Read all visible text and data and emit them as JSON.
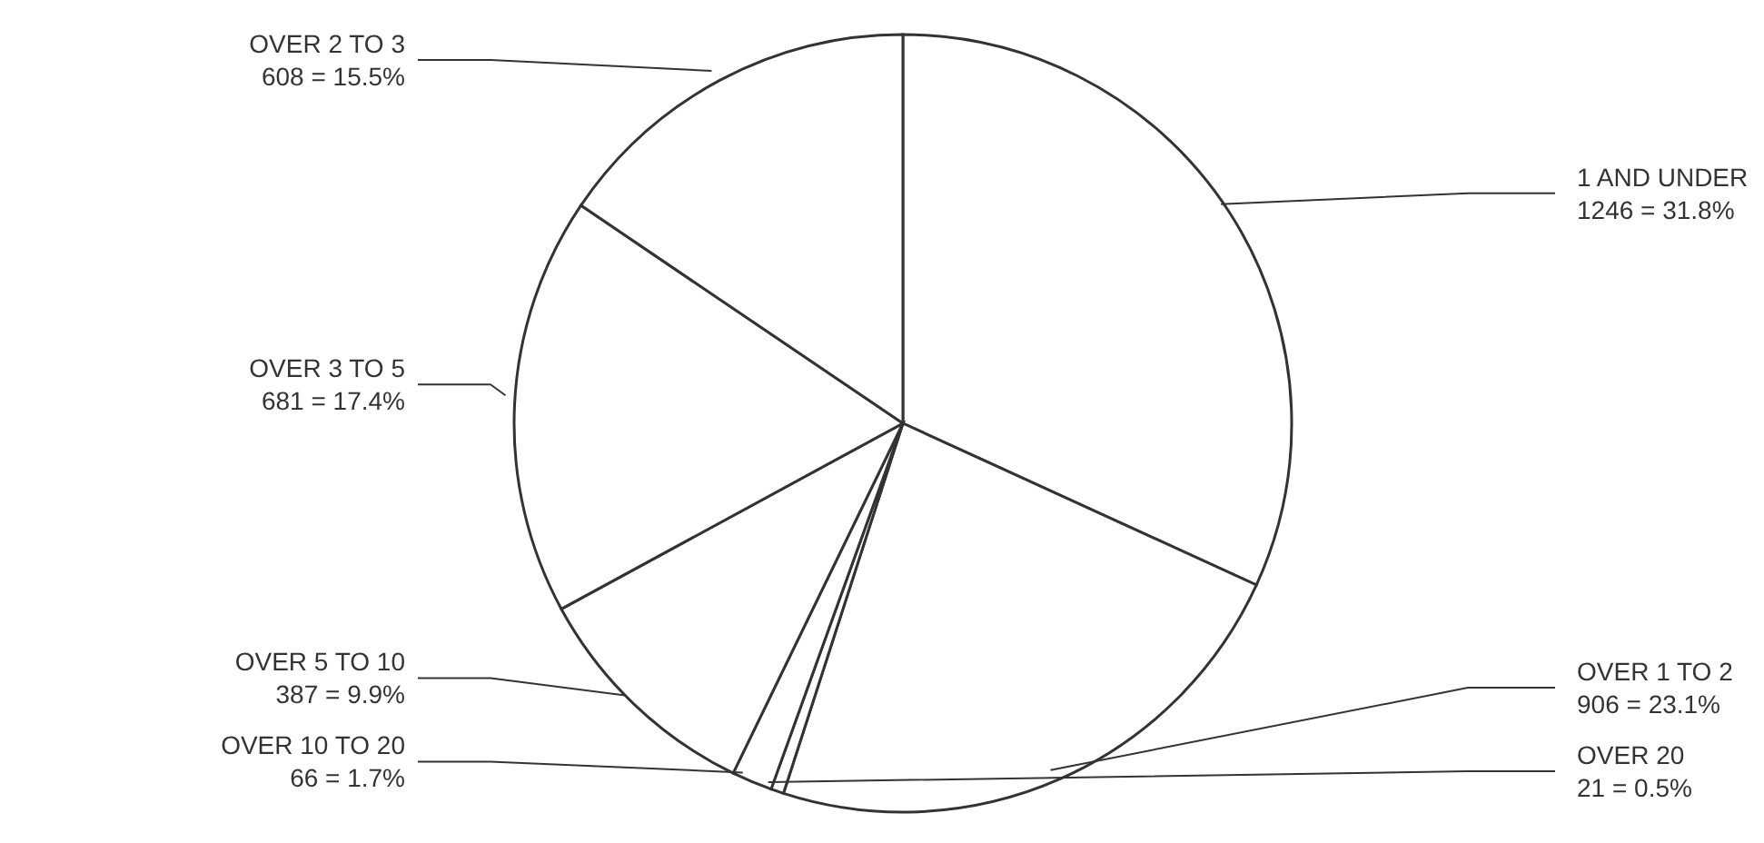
{
  "chart_data": {
    "type": "pie",
    "categories": [
      "1 AND UNDER",
      "OVER 1 TO 2",
      "OVER 20",
      "OVER 10 TO 20",
      "OVER 5 TO 10",
      "OVER 3 TO 5",
      "OVER 2 TO 3"
    ],
    "values": [
      1246,
      906,
      21,
      66,
      387,
      681,
      608
    ],
    "value_labels": [
      "1246 = 31.8%",
      "906 = 23.1%",
      "21 = 0.5%",
      "66 = 1.7%",
      "387 = 9.9%",
      "681 = 17.4%",
      "608 = 15.5%"
    ],
    "colors": [
      "#ffffff",
      "#ffffff",
      "#ffffff",
      "#ffffff",
      "#ffffff",
      "#ffffff",
      "#ffffff"
    ],
    "legend": false
  }
}
